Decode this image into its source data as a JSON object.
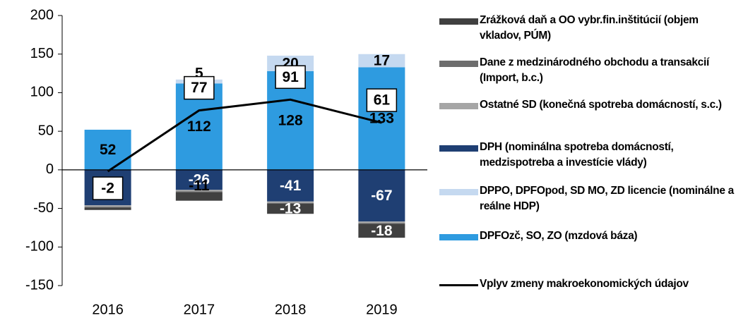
{
  "chart_data": {
    "type": "bar",
    "categories": [
      "2016",
      "2017",
      "2018",
      "2019"
    ],
    "ylim": [
      -150,
      200
    ],
    "yticks": [
      -150,
      -100,
      -50,
      0,
      50,
      100,
      150,
      200
    ],
    "stacked": true,
    "series": [
      {
        "name": "Zrážková daň a OO vybr.fin.inštitúcií (objem vkladov, PÚM)",
        "color": "#404040",
        "label_color": "#ffffff",
        "values": [
          -3,
          -11,
          -13,
          -18
        ],
        "value_labels": [
          null,
          "-11",
          "-13",
          "-18"
        ]
      },
      {
        "name": "Dane z medzinárodného obchodu a transakcií (Import, b.c.)",
        "color": "#6d6d6d",
        "values": [
          -1,
          -1,
          -1,
          -1
        ]
      },
      {
        "name": "Ostatné SD (konečná spotreba domácností, s.c.)",
        "color": "#a6a6a6",
        "values": [
          -2,
          -2,
          -2,
          -2
        ]
      },
      {
        "name": "DPH (nominálna spotreba domácností, medzispotreba a investície vlády)",
        "color": "#1f3f73",
        "label_color": "#ffffff",
        "values": [
          -46,
          -26,
          -41,
          -67
        ],
        "value_labels": [
          null,
          "-26",
          "-41",
          "-67"
        ]
      },
      {
        "name": "DPPO, DPFOpod, SD MO, ZD licencie (nominálne a reálne HDP)",
        "color": "#c5d9f0",
        "label_color": "#000000",
        "values": [
          null,
          5,
          20,
          17
        ],
        "value_labels": [
          null,
          "5",
          "20",
          "17"
        ]
      },
      {
        "name": "DPFOzč, SO, ZO (mzdová báza)",
        "color": "#2e9be0",
        "label_color": "#000000",
        "values": [
          52,
          112,
          128,
          133
        ],
        "value_labels": [
          "52",
          "112",
          "128",
          "133"
        ]
      },
      {
        "name": "Vplyv zmeny makroekonomických údajov",
        "type": "line",
        "color": "#000000",
        "values": [
          -2,
          77,
          91,
          61
        ],
        "value_labels": [
          "-2",
          "77",
          "91",
          "61"
        ]
      }
    ]
  }
}
